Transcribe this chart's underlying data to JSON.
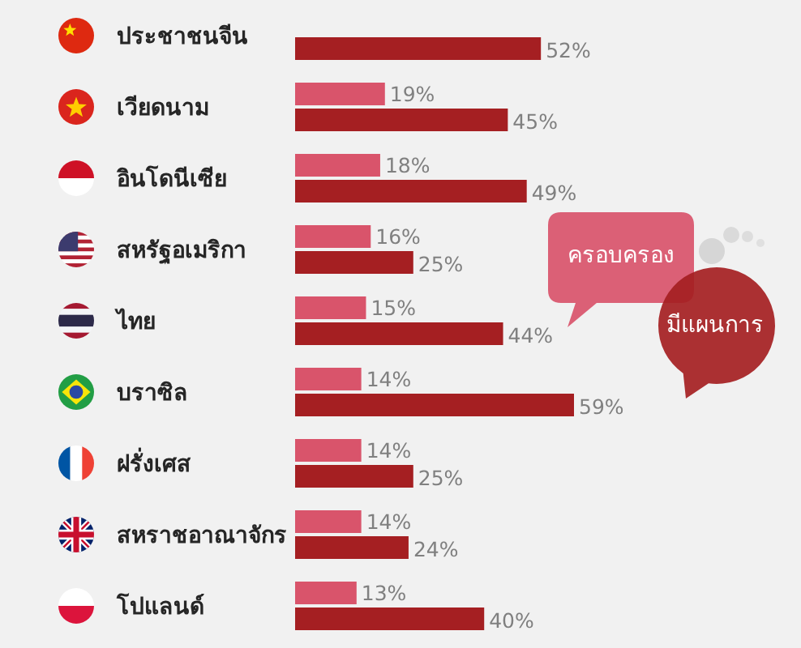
{
  "chart_data": {
    "type": "bar",
    "orientation": "horizontal",
    "categories": [
      "ประชาชนจีน",
      "เวียดนาม",
      "อินโดนีเซีย",
      "สหรัฐอเมริกา",
      "ไทย",
      "บราซิล",
      "ฝรั่งเศส",
      "สหราชอาณาจักร",
      "โปแลนด์"
    ],
    "series": [
      {
        "name": "ครอบครอง",
        "color": "#d9546b",
        "values": [
          null,
          19,
          18,
          16,
          15,
          14,
          14,
          14,
          13
        ],
        "value_labels": [
          null,
          "19%",
          "18%",
          "16%",
          "15%",
          "14%",
          "14%",
          "14%",
          "13%"
        ]
      },
      {
        "name": "มีแผนการ",
        "color": "#a51f22",
        "values": [
          52,
          45,
          49,
          25,
          44,
          59,
          25,
          24,
          40
        ],
        "value_labels": [
          "52%",
          "45%",
          "49%",
          "25%",
          "44%",
          "59%",
          "25%",
          "24%",
          "40%"
        ]
      }
    ],
    "legend": "right"
  }
}
